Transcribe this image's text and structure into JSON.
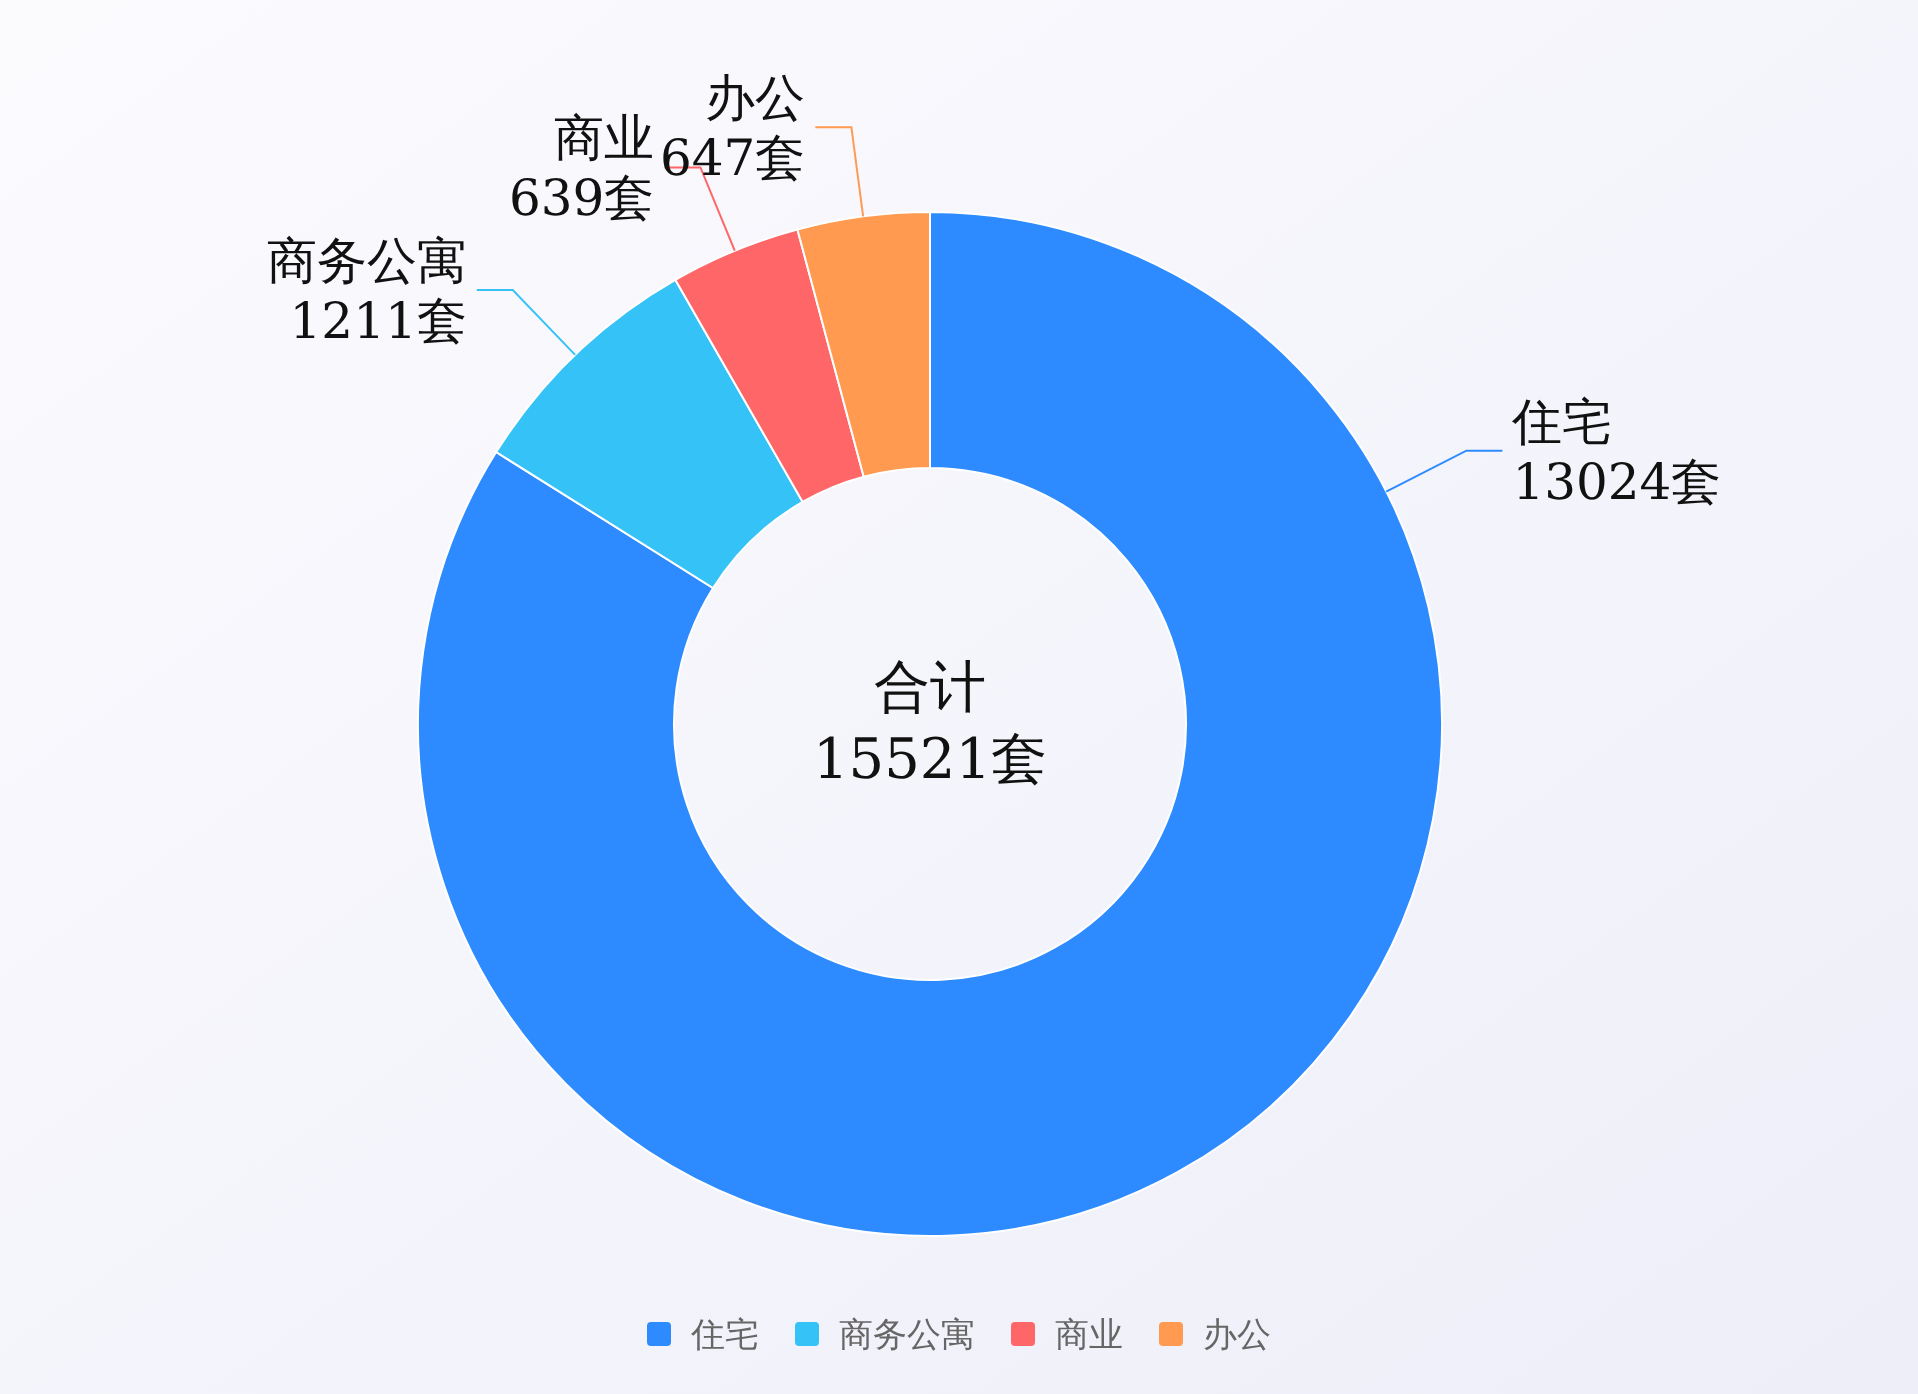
{
  "chart_data": {
    "type": "donut",
    "categories": [
      "住宅",
      "商务公寓",
      "商业",
      "办公"
    ],
    "values": [
      13024,
      1211,
      639,
      647
    ],
    "colors": [
      "#2d8bff",
      "#35c2f6",
      "#ff6668",
      "#ff9a50"
    ],
    "value_labels": [
      "13024套",
      "1211套",
      "639套",
      "647套"
    ],
    "annotations": [
      "合计",
      "15521套"
    ],
    "legend": "bottom"
  }
}
